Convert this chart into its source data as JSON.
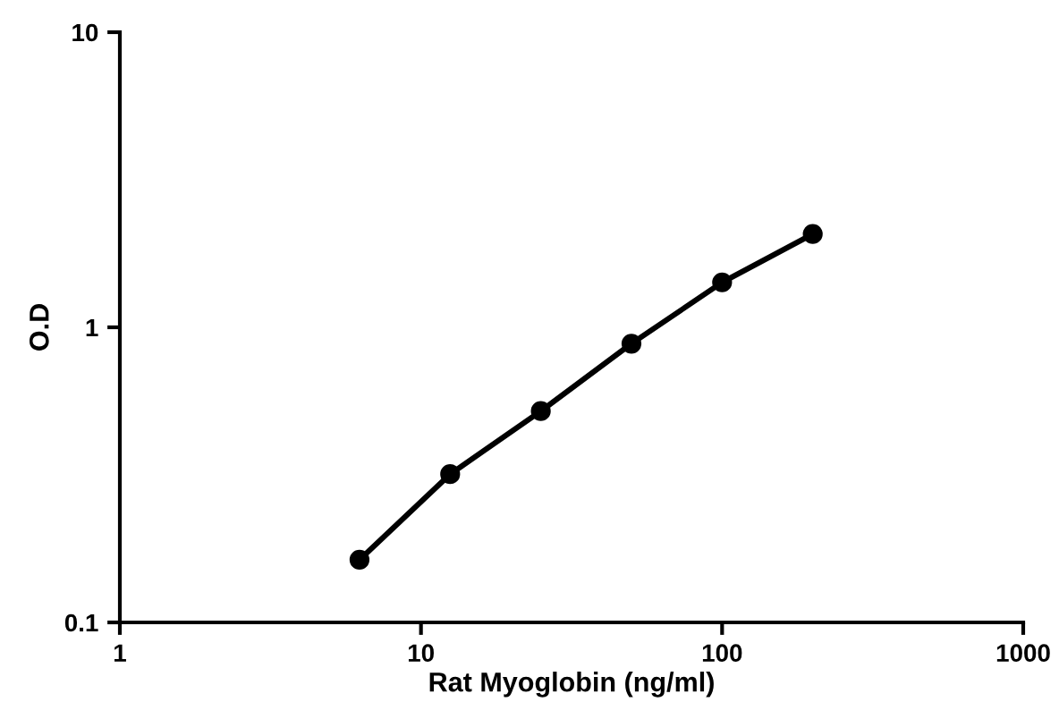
{
  "chart_data": {
    "type": "line",
    "xlabel": "Rat Myoglobin (ng/ml)",
    "ylabel": "O.D",
    "x": [
      6.25,
      12.5,
      25,
      50,
      100,
      200
    ],
    "series": [
      {
        "color": "#000000",
        "values": [
          0.163,
          0.318,
          0.52,
          0.88,
          1.42,
          2.07
        ]
      }
    ],
    "log": "xy",
    "xlim": [
      1,
      1000
    ],
    "ylim": [
      0.1,
      10
    ],
    "xticks": [
      1,
      10,
      100,
      1000
    ],
    "yticks": [
      0.1,
      1,
      10
    ],
    "marker": "circle",
    "line_style": "solid",
    "grid": false,
    "legend": false
  }
}
